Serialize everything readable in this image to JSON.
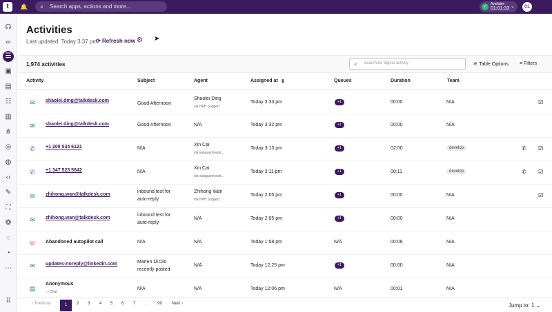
{
  "topbar": {
    "search_placeholder": "Search apps, actions and more...",
    "status_label": "Available",
    "status_time": "01:01:33",
    "avatar_initials": "CL"
  },
  "page": {
    "title": "Activities",
    "last_updated": "Last updated: Today 3:37 pm",
    "refresh_label": "Refresh now"
  },
  "toolbar": {
    "count": "1,974 activities",
    "search_placeholder": "Search for digital activity",
    "table_options": "Table Options",
    "filters": "Filters"
  },
  "columns": [
    "Activity",
    "Subject",
    "Agent",
    "Assigned at",
    "Queues",
    "Duration",
    "Team"
  ],
  "rows": [
    {
      "channel": "email",
      "activity": "shaolei.ding@talkdesk.com",
      "subject": "Good Afternoon",
      "agent": "Shaolei Ding",
      "agent_sub": "via HPH Support",
      "assigned": "Today 3:33 pm",
      "queues": "+1",
      "duration": "00:00",
      "team": "N/A"
    },
    {
      "channel": "email",
      "activity": "shaolei.ding@talkdesk.com",
      "subject": "Good Afternoon",
      "agent": "N/A",
      "agent_sub": "",
      "assigned": "Today 3:32 pm",
      "queues": "+1",
      "duration": "00:00",
      "team": "N/A"
    },
    {
      "channel": "phone",
      "activity": "+1 208 534 6121",
      "subject": "N/A",
      "agent": "Xin Cai",
      "agent_sub": "via vanguard-wuh...",
      "assigned": "Today 3:13 pm",
      "queues": "+1",
      "duration": "02:00",
      "team": "develop"
    },
    {
      "channel": "phone",
      "activity": "+1 347 523 5642",
      "subject": "N/A",
      "agent": "Xin Cai",
      "agent_sub": "via vanguard-wuh...",
      "assigned": "Today 3:11 pm",
      "queues": "+1",
      "duration": "00:11",
      "team": "develop"
    },
    {
      "channel": "email",
      "activity": "zhihong.wan@talkdesk.com",
      "subject": "inbound test for",
      "subject2": "auto-reply",
      "agent": "Zhihong Wan",
      "agent_sub": "via HPH Support",
      "assigned": "Today 2:05 pm",
      "queues": "+1",
      "duration": "00:00",
      "team": "N/A"
    },
    {
      "channel": "email",
      "activity": "zhihong.wan@talkdesk.com",
      "subject": "inbound test for",
      "subject2": "auto-reply",
      "agent": "N/A",
      "agent_sub": "",
      "assigned": "Today 2:05 pm",
      "queues": "+1",
      "duration": "00:00",
      "team": "N/A"
    },
    {
      "channel": "chat",
      "activity": "Abandoned autopilot call",
      "subject": "N/A",
      "agent": "N/A",
      "agent_sub": "",
      "assigned": "Today 1:58 pm",
      "queues": "N/A",
      "duration": "00:08",
      "team": "N/A"
    },
    {
      "channel": "email",
      "activity": "updates-noreply@linkedin.com",
      "subject": "Marien Di Dio",
      "subject2": "recently posted",
      "agent": "N/A",
      "agent_sub": "",
      "assigned": "Today 12:25 pm",
      "queues": "+1",
      "duration": "00:00",
      "team": "N/A"
    },
    {
      "channel": "chat",
      "activity": "Anonymous",
      "activity_sub": "Chat",
      "subject": "N/A",
      "agent": "N/A",
      "agent_sub": "",
      "assigned": "Today 12:06 pm",
      "queues": "N/A",
      "duration": "00:01",
      "team": "N/A"
    }
  ],
  "pager": {
    "previous": "Previous",
    "pages": [
      "1",
      "2",
      "3",
      "4",
      "5",
      "6",
      "7",
      "...",
      "99"
    ],
    "next": "Next",
    "jump_label": "Jump to:",
    "jump_value": "1"
  }
}
